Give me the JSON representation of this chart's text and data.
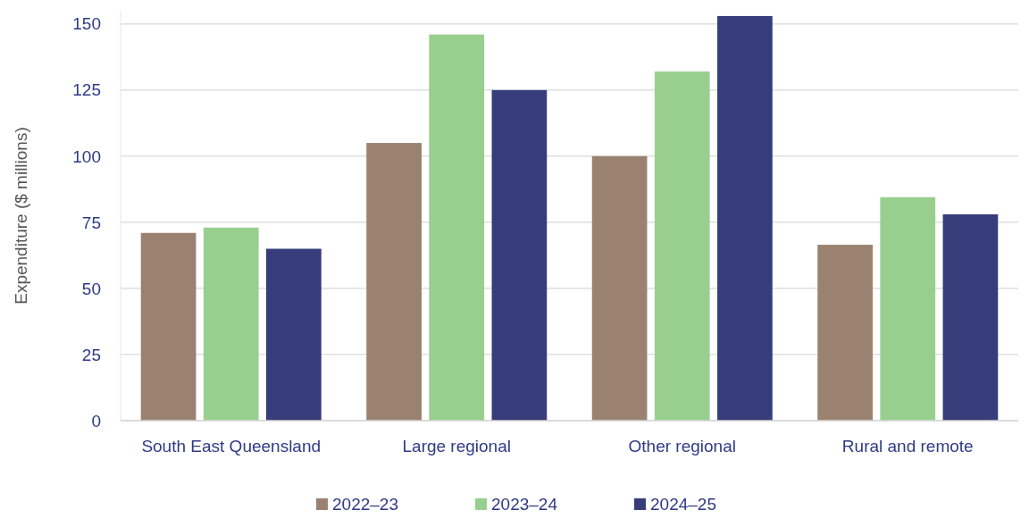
{
  "chart_data": {
    "type": "bar",
    "ylabel": "Expenditure ($ millions)",
    "categories": [
      "South East Queensland",
      "Large regional",
      "Other regional",
      "Rural and remote"
    ],
    "series": [
      {
        "name": "2022–23",
        "color": "#9b8270",
        "values": [
          71,
          105,
          100,
          66.5
        ]
      },
      {
        "name": "2023–24",
        "color": "#98cf8f",
        "values": [
          73,
          146,
          132,
          84.5
        ]
      },
      {
        "name": "2024–25",
        "color": "#363d7a",
        "values": [
          65,
          125,
          153,
          78
        ]
      }
    ],
    "ylim": [
      0,
      155
    ],
    "yticks": [
      0,
      25,
      50,
      75,
      100,
      125,
      150
    ],
    "grid": "y",
    "legend": "bottom"
  }
}
